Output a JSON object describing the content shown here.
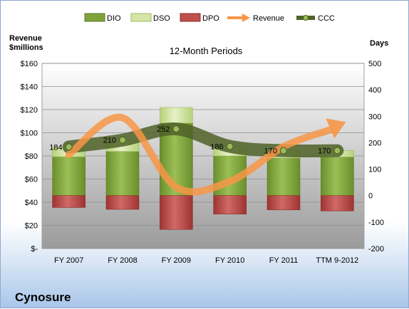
{
  "chart_data": {
    "type": "bar",
    "title": "12-Month Periods",
    "company": "Cynosure",
    "left_axis_label": "Revenue\n$millions",
    "right_axis_label": "Days",
    "categories": [
      "FY 2007",
      "FY 2008",
      "FY 2009",
      "FY 2010",
      "FY 2011",
      "TTM 9-2012"
    ],
    "left_ticks": [
      "$-",
      "$20",
      "$40",
      "$60",
      "$80",
      "$100",
      "$120",
      "$140",
      "$160"
    ],
    "left_ylim": [
      0,
      160
    ],
    "right_ticks": [
      "-200",
      "-100",
      "0",
      "100",
      "200",
      "300",
      "400",
      "500"
    ],
    "right_ylim": [
      -200,
      500
    ],
    "grid": true,
    "legend_placement": "top",
    "legend": [
      "DIO",
      "DSO",
      "DPO",
      "Revenue",
      "CCC"
    ],
    "series": [
      {
        "name": "DIO",
        "axis": "days",
        "values": [
          147,
          167,
          274,
          150,
          142,
          146
        ],
        "color": "#7fa23a"
      },
      {
        "name": "DSO",
        "axis": "days",
        "values": [
          37,
          43,
          59,
          36,
          28,
          24
        ],
        "color": "#d4e5a6"
      },
      {
        "name": "DPO",
        "axis": "days",
        "values": [
          -45,
          -52,
          -128,
          -70,
          -54,
          -58
        ],
        "color": "#c0504d"
      },
      {
        "name": "Revenue",
        "axis": "revenue",
        "values": [
          81,
          113,
          53,
          58,
          88,
          105
        ],
        "color": "#f79646"
      },
      {
        "name": "CCC",
        "axis": "days",
        "values": [
          184,
          210,
          252,
          186,
          170,
          170
        ],
        "color": "#4f6228"
      }
    ],
    "ccc_labels": [
      "184",
      "210",
      "252",
      "186",
      "170",
      "170"
    ]
  }
}
